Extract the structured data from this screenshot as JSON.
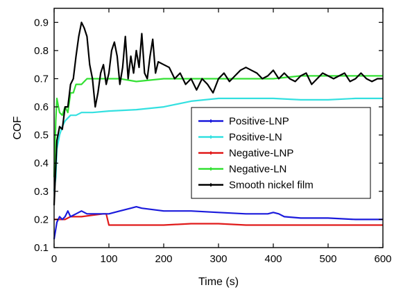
{
  "chart_data": {
    "type": "line",
    "title": "",
    "xlabel": "Time (s)",
    "ylabel": "COF",
    "xlim": [
      0,
      600
    ],
    "ylim": [
      0.1,
      0.95
    ],
    "xticks": [
      0,
      100,
      200,
      300,
      400,
      500,
      600
    ],
    "yticks": [
      0.1,
      0.2,
      0.3,
      0.4,
      0.5,
      0.6,
      0.7,
      0.8,
      0.9
    ],
    "grid": false,
    "legend_position": "center-right",
    "series": [
      {
        "name": "Positive-LNP",
        "color": "#1a1adc",
        "x": [
          0,
          5,
          10,
          15,
          20,
          25,
          30,
          40,
          50,
          60,
          70,
          80,
          90,
          100,
          120,
          140,
          150,
          160,
          180,
          200,
          250,
          300,
          350,
          390,
          400,
          410,
          420,
          450,
          500,
          550,
          600
        ],
        "y": [
          0.13,
          0.19,
          0.21,
          0.2,
          0.21,
          0.23,
          0.21,
          0.22,
          0.23,
          0.22,
          0.22,
          0.22,
          0.22,
          0.22,
          0.23,
          0.24,
          0.245,
          0.24,
          0.235,
          0.23,
          0.23,
          0.225,
          0.22,
          0.22,
          0.225,
          0.22,
          0.21,
          0.205,
          0.205,
          0.2,
          0.2
        ]
      },
      {
        "name": "Positive-LN",
        "color": "#33e0e0",
        "x": [
          0,
          3,
          5,
          10,
          15,
          20,
          30,
          40,
          50,
          70,
          100,
          150,
          200,
          250,
          300,
          350,
          400,
          450,
          500,
          550,
          600
        ],
        "y": [
          0.3,
          0.35,
          0.45,
          0.5,
          0.53,
          0.55,
          0.57,
          0.57,
          0.58,
          0.58,
          0.585,
          0.59,
          0.6,
          0.62,
          0.63,
          0.63,
          0.63,
          0.625,
          0.625,
          0.63,
          0.63
        ]
      },
      {
        "name": "Negative-LNP",
        "color": "#e01a1a",
        "x": [
          0,
          5,
          10,
          20,
          30,
          50,
          70,
          90,
          95,
          100,
          110,
          150,
          200,
          250,
          300,
          350,
          400,
          450,
          500,
          550,
          600
        ],
        "y": [
          0.2,
          0.2,
          0.2,
          0.2,
          0.21,
          0.21,
          0.215,
          0.22,
          0.22,
          0.18,
          0.18,
          0.18,
          0.18,
          0.185,
          0.185,
          0.18,
          0.18,
          0.18,
          0.18,
          0.18,
          0.18
        ]
      },
      {
        "name": "Negative-LN",
        "color": "#33e033",
        "x": [
          0,
          3,
          5,
          8,
          10,
          15,
          20,
          25,
          30,
          35,
          40,
          50,
          60,
          80,
          100,
          120,
          150,
          200,
          250,
          300,
          350,
          400,
          450,
          500,
          550,
          600
        ],
        "y": [
          0.35,
          0.55,
          0.63,
          0.6,
          0.58,
          0.57,
          0.6,
          0.58,
          0.65,
          0.65,
          0.68,
          0.68,
          0.7,
          0.7,
          0.7,
          0.7,
          0.69,
          0.7,
          0.7,
          0.7,
          0.7,
          0.7,
          0.71,
          0.71,
          0.71,
          0.71
        ]
      },
      {
        "name": "Smooth nickel film",
        "color": "#000000",
        "x": [
          0,
          5,
          10,
          15,
          20,
          25,
          30,
          35,
          40,
          45,
          50,
          55,
          60,
          65,
          70,
          75,
          80,
          85,
          90,
          95,
          100,
          105,
          110,
          115,
          120,
          125,
          130,
          135,
          140,
          145,
          150,
          155,
          160,
          165,
          170,
          175,
          180,
          185,
          190,
          200,
          210,
          220,
          230,
          240,
          250,
          260,
          270,
          280,
          290,
          300,
          310,
          320,
          330,
          340,
          350,
          360,
          370,
          380,
          390,
          400,
          410,
          420,
          430,
          440,
          450,
          460,
          470,
          480,
          490,
          500,
          510,
          520,
          530,
          540,
          550,
          560,
          570,
          580,
          590,
          600
        ],
        "y": [
          0.25,
          0.48,
          0.53,
          0.52,
          0.6,
          0.6,
          0.68,
          0.7,
          0.78,
          0.85,
          0.9,
          0.88,
          0.85,
          0.75,
          0.7,
          0.6,
          0.65,
          0.72,
          0.75,
          0.68,
          0.72,
          0.8,
          0.83,
          0.78,
          0.68,
          0.74,
          0.85,
          0.7,
          0.78,
          0.72,
          0.8,
          0.74,
          0.86,
          0.72,
          0.7,
          0.78,
          0.84,
          0.72,
          0.76,
          0.75,
          0.74,
          0.7,
          0.72,
          0.68,
          0.7,
          0.66,
          0.7,
          0.68,
          0.65,
          0.7,
          0.72,
          0.69,
          0.71,
          0.73,
          0.74,
          0.73,
          0.72,
          0.7,
          0.71,
          0.73,
          0.7,
          0.72,
          0.7,
          0.69,
          0.71,
          0.72,
          0.68,
          0.7,
          0.72,
          0.71,
          0.7,
          0.71,
          0.72,
          0.69,
          0.7,
          0.72,
          0.7,
          0.69,
          0.7,
          0.7
        ]
      }
    ]
  }
}
